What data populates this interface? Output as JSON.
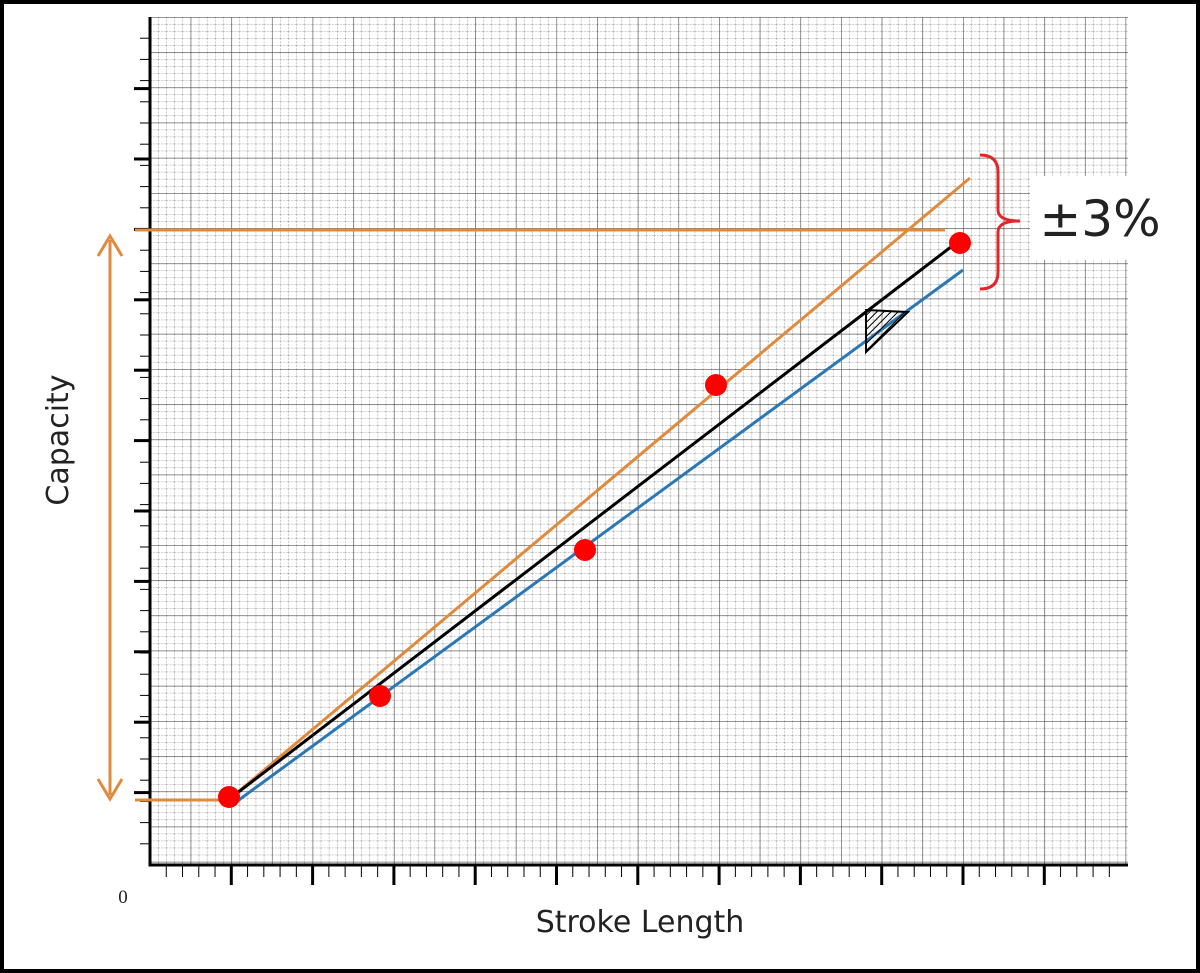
{
  "axes": {
    "y_label": "Capacity",
    "x_label": "Stroke Length",
    "origin_label": "0"
  },
  "annotation": {
    "tolerance": "±3%"
  }
}
